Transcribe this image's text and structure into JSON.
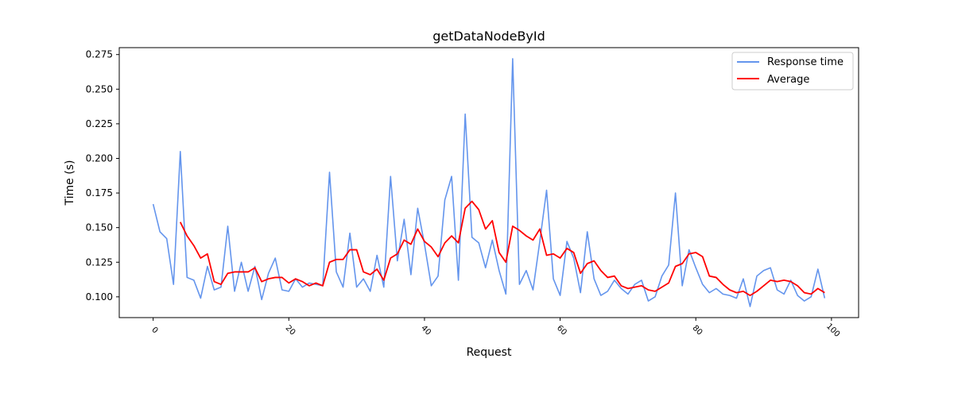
{
  "chart_data": {
    "type": "line",
    "title": "getDataNodeById",
    "xlabel": "Request",
    "ylabel": "Time (s)",
    "xlim": [
      -5,
      104
    ],
    "ylim": [
      0.085,
      0.28
    ],
    "x_ticks": [
      0,
      20,
      40,
      60,
      80,
      100
    ],
    "x_tick_labels": [
      "0",
      "20",
      "40",
      "60",
      "80",
      "100"
    ],
    "y_ticks": [
      0.1,
      0.125,
      0.15,
      0.175,
      0.2,
      0.225,
      0.25,
      0.275
    ],
    "y_tick_labels": [
      "0.100",
      "0.125",
      "0.150",
      "0.175",
      "0.200",
      "0.225",
      "0.250",
      "0.275"
    ],
    "grid": false,
    "legend_position": "top-right",
    "series": [
      {
        "name": "Response time",
        "color": "#6495ED",
        "x_start": 0,
        "values": [
          0.167,
          0.147,
          0.142,
          0.109,
          0.205,
          0.114,
          0.112,
          0.099,
          0.122,
          0.105,
          0.107,
          0.151,
          0.104,
          0.125,
          0.104,
          0.122,
          0.098,
          0.117,
          0.128,
          0.105,
          0.104,
          0.113,
          0.107,
          0.11,
          0.109,
          0.108,
          0.19,
          0.118,
          0.107,
          0.146,
          0.107,
          0.113,
          0.104,
          0.13,
          0.107,
          0.187,
          0.126,
          0.156,
          0.116,
          0.164,
          0.138,
          0.108,
          0.115,
          0.17,
          0.187,
          0.112,
          0.232,
          0.143,
          0.139,
          0.121,
          0.141,
          0.119,
          0.102,
          0.272,
          0.109,
          0.119,
          0.105,
          0.14,
          0.177,
          0.113,
          0.101,
          0.14,
          0.128,
          0.103,
          0.147,
          0.113,
          0.101,
          0.104,
          0.112,
          0.106,
          0.102,
          0.109,
          0.112,
          0.097,
          0.1,
          0.115,
          0.123,
          0.175,
          0.108,
          0.134,
          0.121,
          0.109,
          0.103,
          0.106,
          0.102,
          0.101,
          0.099,
          0.113,
          0.093,
          0.115,
          0.119,
          0.121,
          0.105,
          0.102,
          0.112,
          0.101,
          0.097,
          0.1,
          0.12,
          0.099
        ]
      },
      {
        "name": "Average",
        "color": "#FF0000",
        "x_start": 4,
        "values": [
          0.154,
          0.144,
          0.137,
          0.128,
          0.131,
          0.111,
          0.109,
          0.117,
          0.118,
          0.118,
          0.118,
          0.121,
          0.111,
          0.113,
          0.114,
          0.114,
          0.11,
          0.113,
          0.111,
          0.108,
          0.11,
          0.108,
          0.125,
          0.127,
          0.127,
          0.134,
          0.134,
          0.118,
          0.116,
          0.12,
          0.112,
          0.128,
          0.131,
          0.141,
          0.138,
          0.149,
          0.14,
          0.136,
          0.129,
          0.139,
          0.144,
          0.139,
          0.164,
          0.169,
          0.163,
          0.149,
          0.155,
          0.132,
          0.125,
          0.151,
          0.148,
          0.144,
          0.141,
          0.149,
          0.13,
          0.131,
          0.128,
          0.135,
          0.132,
          0.117,
          0.124,
          0.126,
          0.119,
          0.114,
          0.115,
          0.108,
          0.106,
          0.107,
          0.108,
          0.105,
          0.104,
          0.107,
          0.11,
          0.122,
          0.124,
          0.131,
          0.132,
          0.129,
          0.115,
          0.114,
          0.109,
          0.105,
          0.103,
          0.104,
          0.101,
          0.104,
          0.108,
          0.112,
          0.111,
          0.112,
          0.111,
          0.108,
          0.103,
          0.102,
          0.106,
          0.103
        ]
      }
    ]
  }
}
